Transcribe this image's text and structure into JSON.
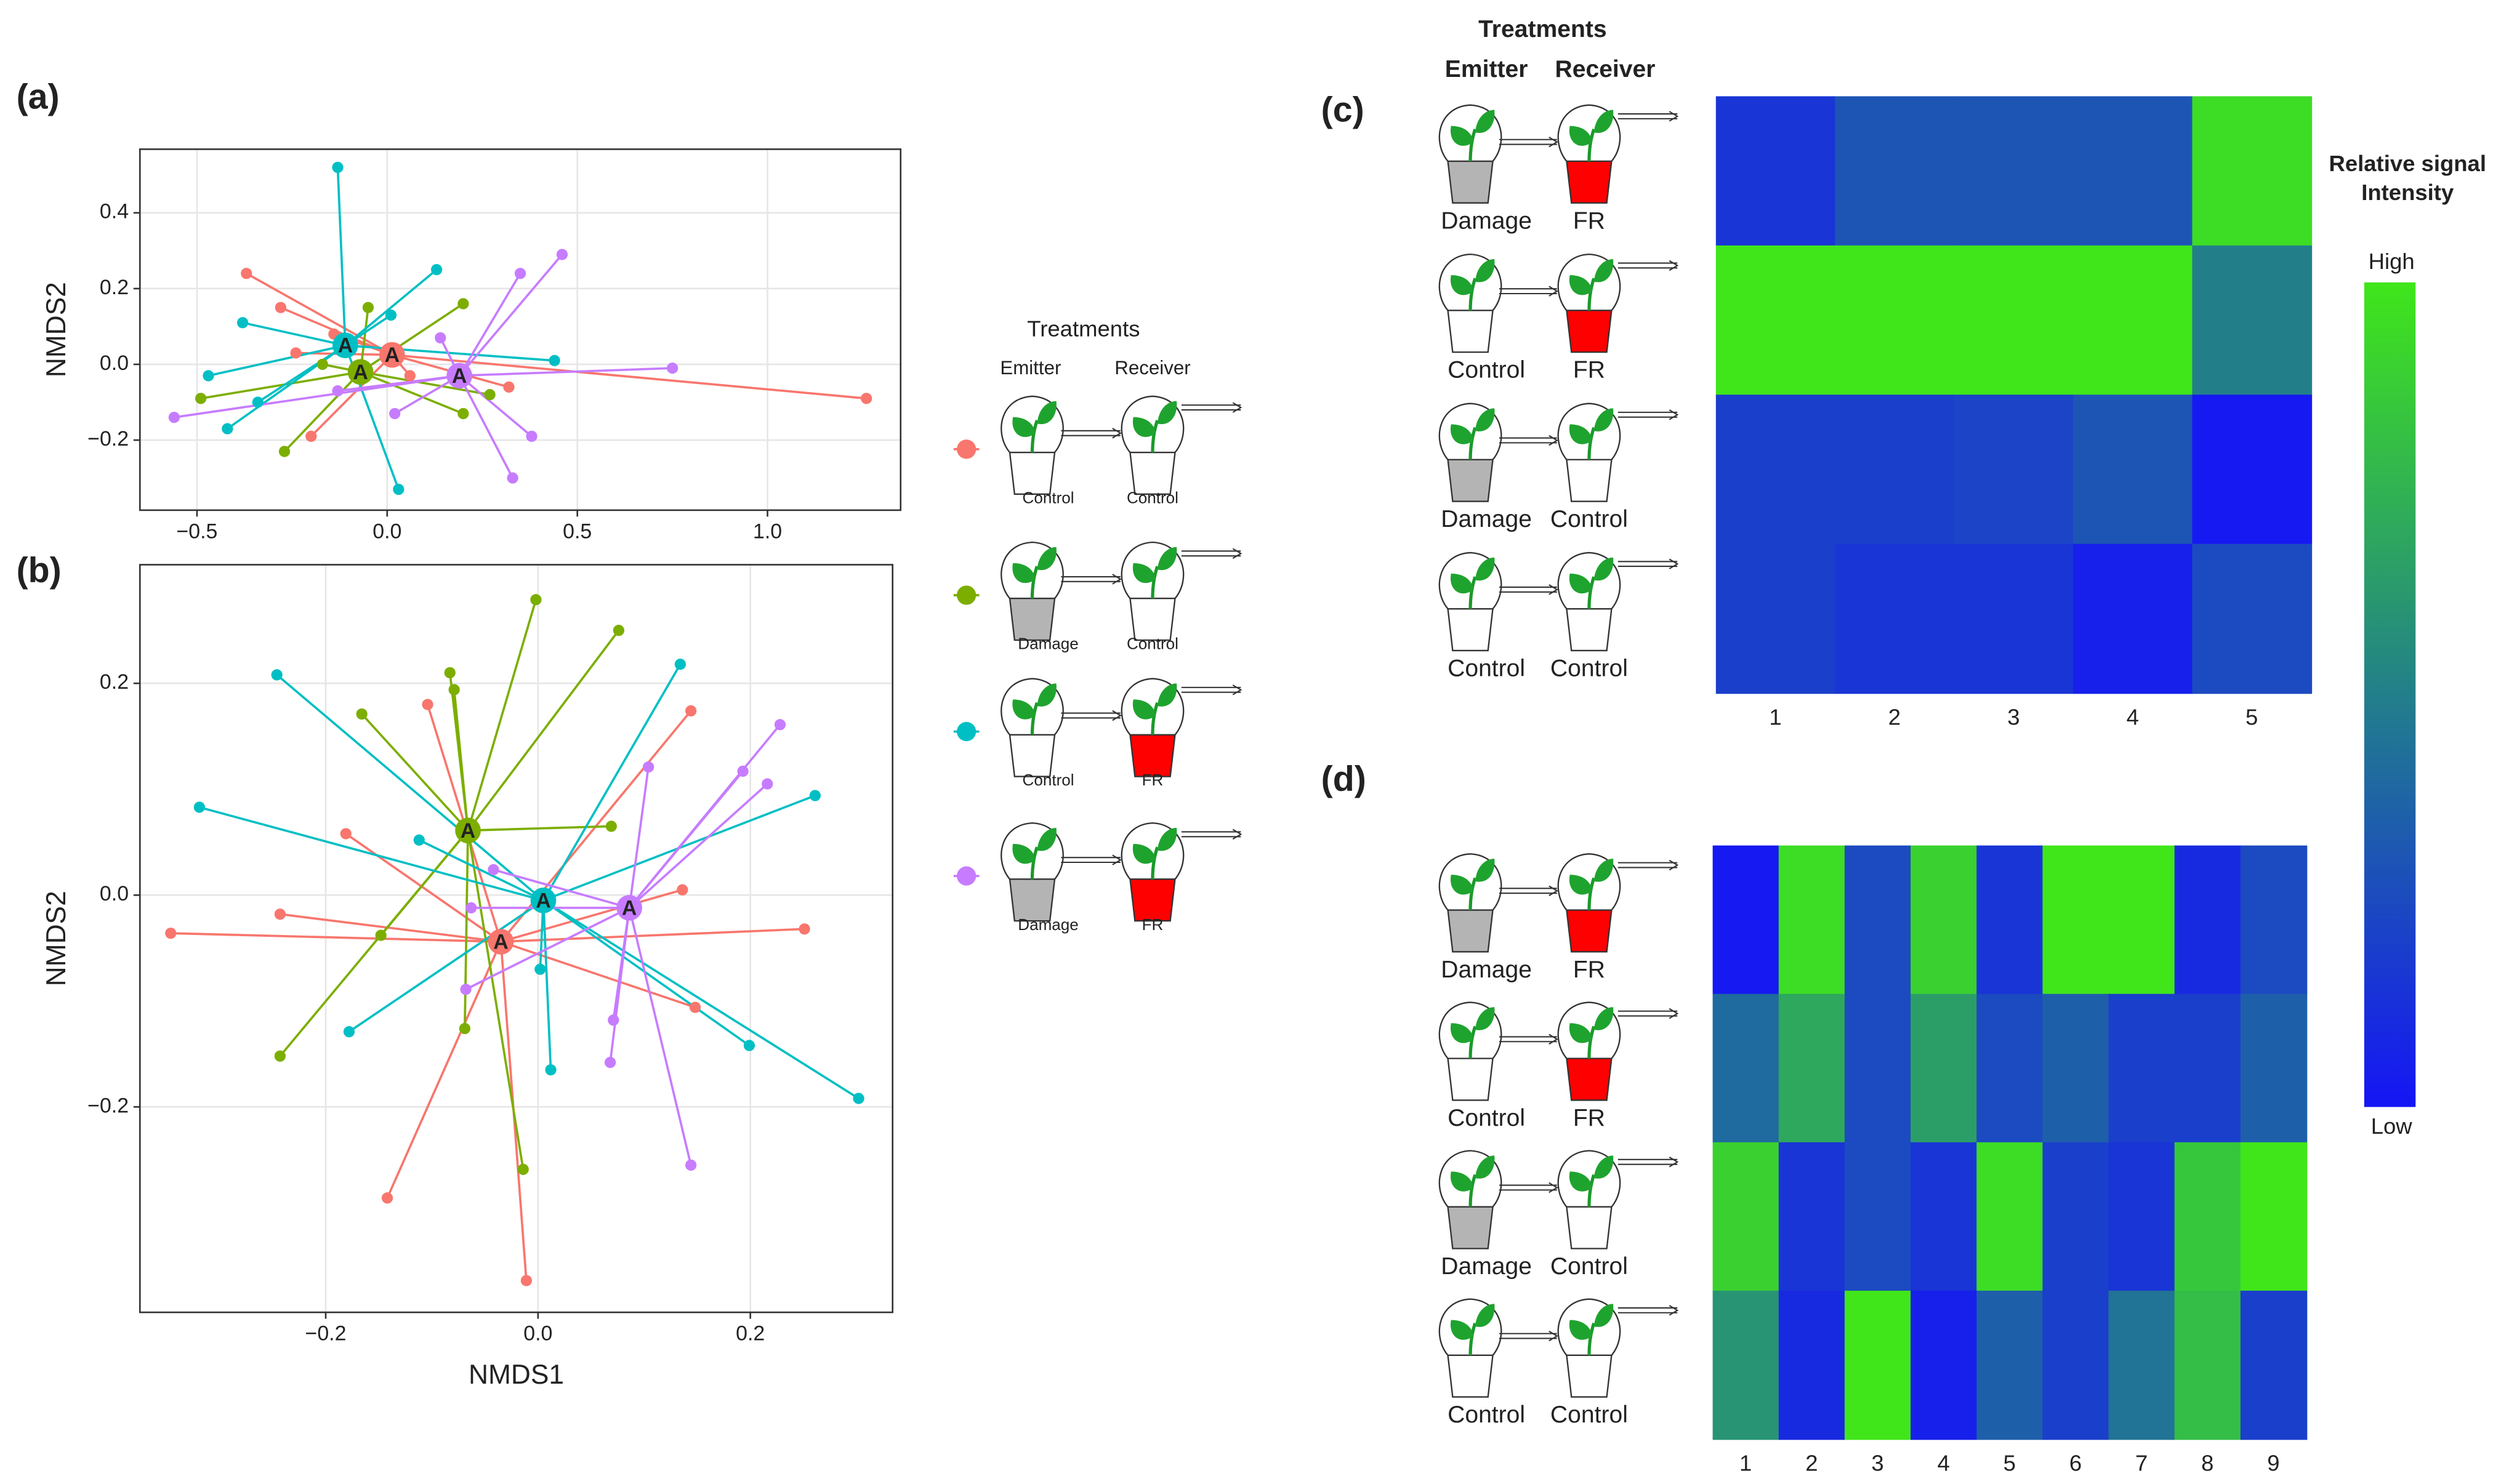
{
  "chart_data": [
    {
      "type": "scatter",
      "panel": "(a)",
      "ylabel": "NMDS2",
      "xlim": [
        -0.65,
        1.35
      ],
      "ylim": [
        -0.385,
        0.568
      ],
      "xticks": [
        {
          "value": -0.5,
          "label": "−0.5"
        },
        {
          "value": 0,
          "label": "0.0"
        },
        0.5,
        {
          "value": 1,
          "label": "1.0"
        }
      ],
      "yticks": [
        {
          "value": -0.2,
          "label": "−0.2"
        },
        {
          "value": 0,
          "label": "0.0"
        },
        0.2,
        0.4
      ],
      "grid": true,
      "series": [
        {
          "color": "#F8766D",
          "centroid": {
            "x": 0.013,
            "y": 0.025,
            "label": "A"
          },
          "x": [
            -0.37,
            -0.28,
            -0.24,
            -0.2,
            0.06,
            0.32,
            1.26,
            -0.14
          ],
          "y": [
            0.24,
            0.15,
            0.03,
            -0.19,
            -0.03,
            -0.06,
            -0.09,
            0.08
          ]
        },
        {
          "color": "#7CAE00",
          "centroid": {
            "x": -0.07,
            "y": -0.02,
            "label": "A"
          },
          "x": [
            -0.05,
            0.2,
            0.27,
            0.2,
            -0.27,
            -0.49,
            -0.17
          ],
          "y": [
            0.15,
            0.16,
            -0.08,
            -0.13,
            -0.23,
            -0.09,
            0.0
          ]
        },
        {
          "color": "#00BFC4",
          "centroid": {
            "x": -0.11,
            "y": 0.05,
            "label": "A"
          },
          "x": [
            -0.13,
            0.13,
            0.01,
            -0.38,
            -0.47,
            -0.42,
            0.03,
            0.44,
            -0.34
          ],
          "y": [
            0.52,
            0.25,
            0.13,
            0.11,
            -0.03,
            -0.17,
            -0.33,
            0.01,
            -0.1
          ]
        },
        {
          "color": "#C77CFF",
          "centroid": {
            "x": 0.19,
            "y": -0.03,
            "label": "A"
          },
          "x": [
            0.46,
            0.35,
            0.14,
            0.75,
            0.38,
            0.33,
            0.02,
            -0.56,
            -0.13
          ],
          "y": [
            0.29,
            0.24,
            0.07,
            -0.01,
            -0.19,
            -0.3,
            -0.13,
            -0.14,
            -0.07
          ]
        }
      ]
    },
    {
      "type": "scatter",
      "panel": "(b)",
      "xlabel": "NMDS1",
      "ylabel": "NMDS2",
      "xlim": [
        -0.375,
        0.334
      ],
      "ylim": [
        -0.394,
        0.312
      ],
      "xticks": [
        {
          "value": -0.2,
          "label": "−0.2"
        },
        {
          "value": 0,
          "label": "0.0"
        },
        0.2
      ],
      "yticks": [
        {
          "value": -0.2,
          "label": "−0.2"
        },
        {
          "value": 0,
          "label": "0.0"
        },
        0.2
      ],
      "grid": true,
      "series": [
        {
          "color": "#F8766D",
          "centroid": {
            "x": -0.035,
            "y": -0.044,
            "label": "A"
          },
          "x": [
            -0.346,
            -0.243,
            -0.181,
            -0.104,
            0.144,
            0.136,
            0.251,
            0.148,
            -0.142,
            -0.011
          ],
          "y": [
            -0.036,
            -0.018,
            0.058,
            0.18,
            0.174,
            0.005,
            -0.032,
            -0.106,
            -0.286,
            -0.364
          ]
        },
        {
          "color": "#7CAE00",
          "centroid": {
            "x": -0.066,
            "y": 0.061,
            "label": "A"
          },
          "x": [
            -0.002,
            0.076,
            -0.083,
            -0.079,
            -0.166,
            0.069,
            -0.148,
            -0.243,
            -0.069,
            -0.014
          ],
          "y": [
            0.279,
            0.25,
            0.21,
            0.194,
            0.171,
            0.065,
            -0.038,
            -0.152,
            -0.126,
            -0.259
          ]
        },
        {
          "color": "#00BFC4",
          "centroid": {
            "x": 0.005,
            "y": -0.005,
            "label": "A"
          },
          "x": [
            -0.246,
            0.134,
            -0.319,
            -0.112,
            0.261,
            -0.178,
            0.002,
            0.012,
            0.199,
            0.302
          ],
          "y": [
            0.208,
            0.218,
            0.083,
            0.052,
            0.094,
            -0.129,
            -0.07,
            -0.165,
            -0.142,
            -0.192
          ]
        },
        {
          "color": "#C77CFF",
          "centroid": {
            "x": 0.086,
            "y": -0.012,
            "label": "A"
          },
          "x": [
            0.228,
            0.193,
            0.216,
            0.104,
            -0.042,
            -0.063,
            -0.068,
            0.071,
            0.068,
            0.144
          ],
          "y": [
            0.161,
            0.117,
            0.105,
            0.121,
            0.024,
            -0.012,
            -0.089,
            -0.118,
            -0.158,
            -0.255
          ]
        }
      ]
    },
    {
      "type": "heatmap",
      "panel": "(c)",
      "row_header": {
        "title": "Treatments",
        "emitter": "Emitter",
        "receiver": "Receiver"
      },
      "categories": [
        1,
        2,
        3,
        4,
        5
      ],
      "rows": [
        {
          "emitter": "Damage",
          "receiver": "FR"
        },
        {
          "emitter": "Control",
          "receiver": "FR"
        },
        {
          "emitter": "Damage",
          "receiver": "Control"
        },
        {
          "emitter": "Control",
          "receiver": "Control"
        }
      ],
      "values": [
        [
          0.15,
          0.3,
          0.3,
          0.3,
          0.95
        ],
        [
          1,
          1,
          1,
          1,
          0.5
        ],
        [
          0.2,
          0.2,
          0.22,
          0.3,
          0.02
        ],
        [
          0.2,
          0.15,
          0.15,
          0.05,
          0.25
        ]
      ]
    },
    {
      "type": "heatmap",
      "panel": "(d)",
      "categories": [
        1,
        2,
        3,
        4,
        5,
        6,
        7,
        8,
        9
      ],
      "rows": [
        {
          "emitter": "Damage",
          "receiver": "FR"
        },
        {
          "emitter": "Control",
          "receiver": "FR"
        },
        {
          "emitter": "Damage",
          "receiver": "Control"
        },
        {
          "emitter": "Control",
          "receiver": "Control"
        }
      ],
      "values": [
        [
          0.02,
          0.95,
          0.25,
          0.9,
          0.15,
          1,
          1,
          0.1,
          0.25
        ],
        [
          0.4,
          0.7,
          0.25,
          0.65,
          0.25,
          0.35,
          0.2,
          0.2,
          0.35
        ],
        [
          0.9,
          0.15,
          0.25,
          0.15,
          0.95,
          0.2,
          0.15,
          0.85,
          1
        ],
        [
          0.6,
          0.1,
          1,
          0.05,
          0.35,
          0.2,
          0.45,
          0.8,
          0.2
        ]
      ]
    }
  ],
  "legend": {
    "title": "Treatments",
    "emitter": "Emitter",
    "receiver": "Receiver",
    "entries": [
      {
        "emitter": "Control",
        "receiver": "Control"
      },
      {
        "emitter": "Damage",
        "receiver": "Control"
      },
      {
        "emitter": "Control",
        "receiver": "FR"
      },
      {
        "emitter": "Damage",
        "receiver": "FR"
      }
    ]
  },
  "colorbar": {
    "title": [
      "Relative signal",
      "Intensity"
    ],
    "high": "High",
    "low": "Low",
    "colors": [
      "#1515f5",
      "#227f8a",
      "#40e61a"
    ]
  },
  "pot_colors": {
    "Damage": "#b4b4b4",
    "FR": "#ff0000",
    "Control": "#ffffff"
  }
}
